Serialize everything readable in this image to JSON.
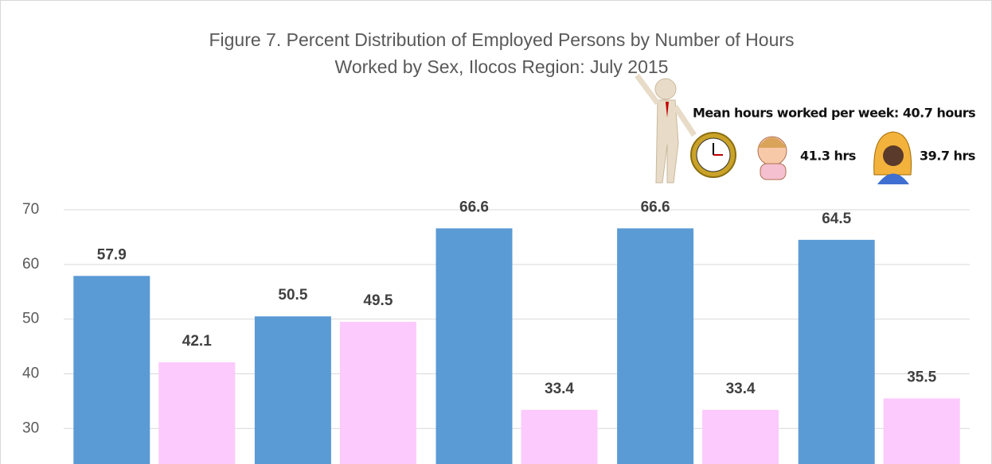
{
  "chart_data": {
    "type": "bar",
    "title": "Figure 7. Percent Distribution of Employed Persons by Number of Hours",
    "subtitle": "Worked by Sex, Ilocos Region: July 2015",
    "annotations": [
      "Mean hours worked per week: 40.7 hours",
      "41.3 hrs",
      "39.7 hrs"
    ],
    "categories": [
      null,
      null,
      null,
      null,
      null
    ],
    "series": [
      {
        "color": "#5b9bd5",
        "values": [
          57.9,
          50.5,
          66.6,
          66.6,
          64.5
        ]
      },
      {
        "color": "#fccafc",
        "values": [
          42.1,
          49.5,
          33.4,
          33.4,
          35.5
        ]
      }
    ],
    "ylim": [
      23.5,
      70
    ],
    "yticks": [
      30,
      40,
      50,
      60,
      70
    ],
    "grid": true
  }
}
